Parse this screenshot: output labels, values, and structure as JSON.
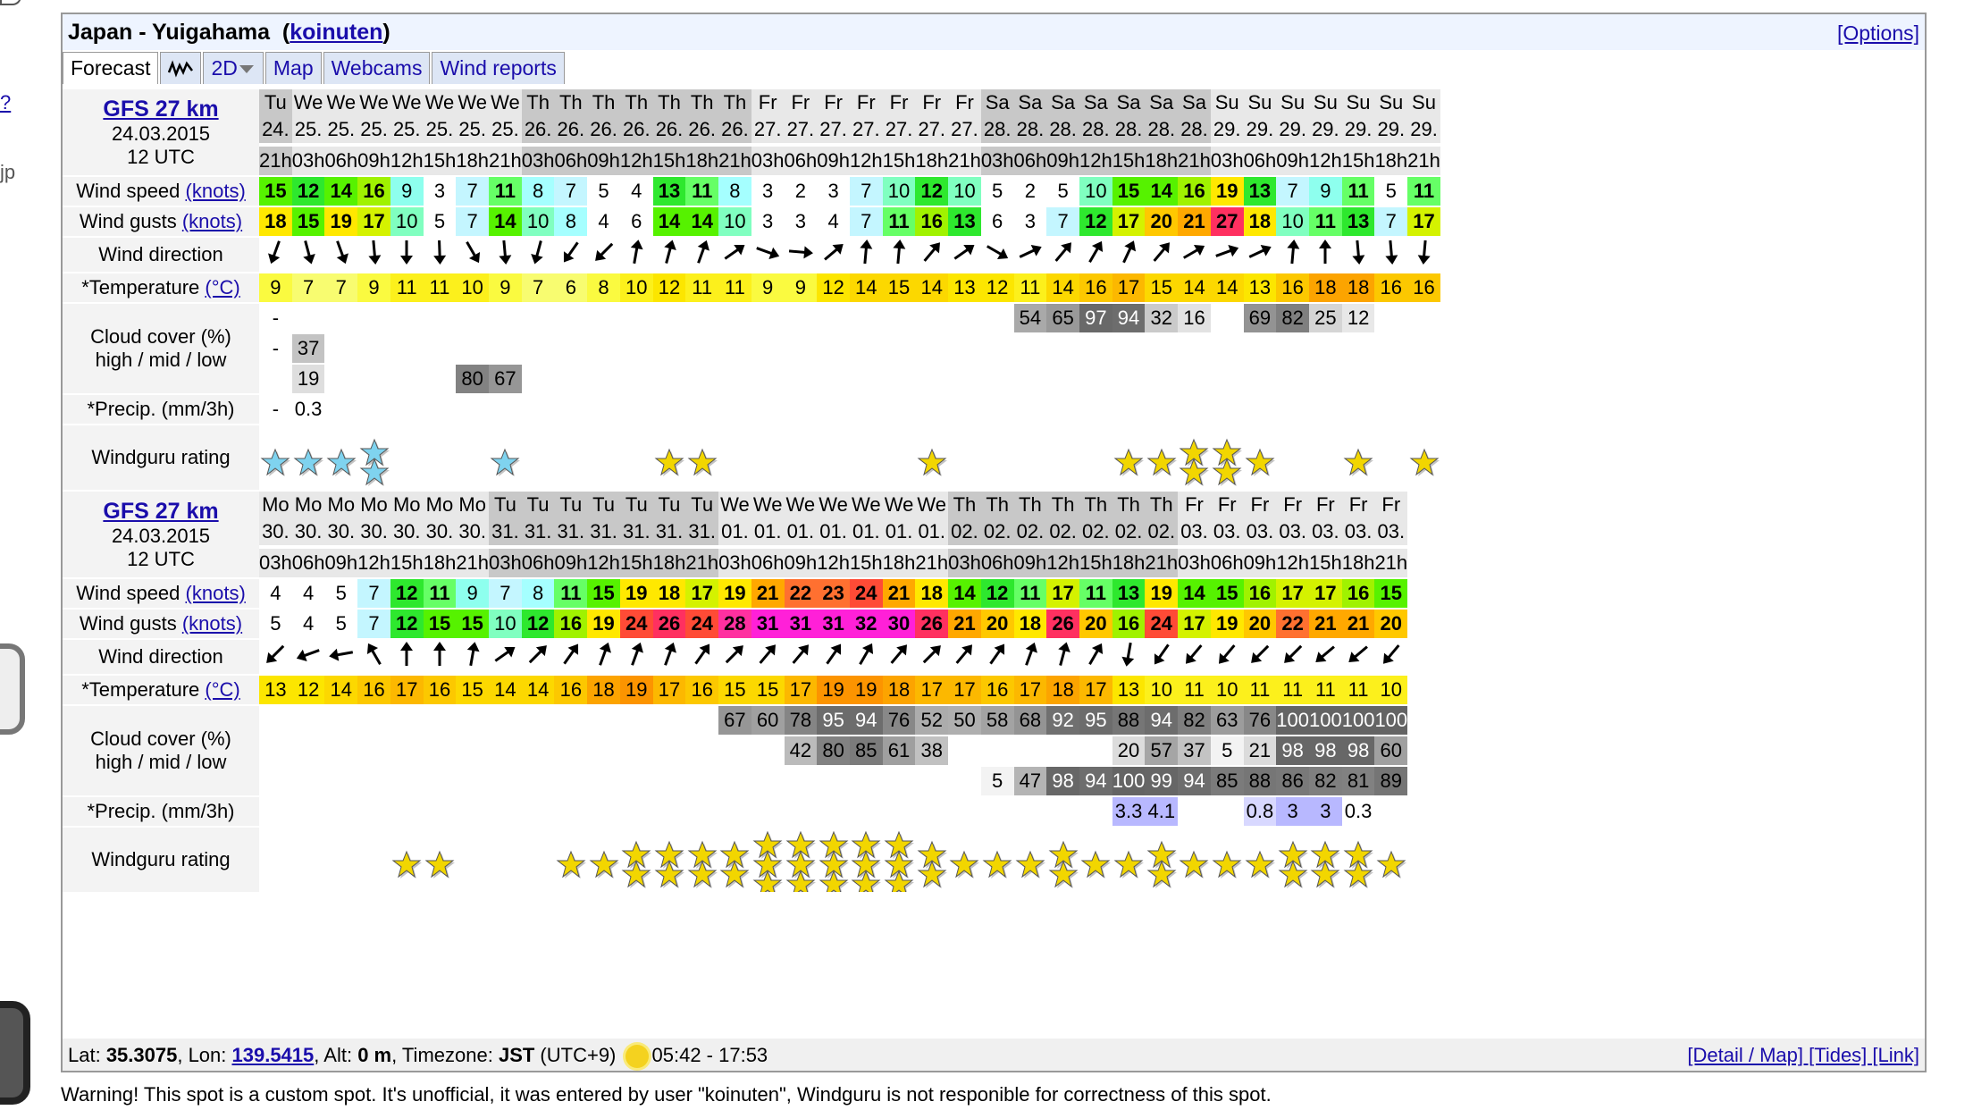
{
  "spot": {
    "title": "Japan - Yuigahama",
    "user": "koinuten",
    "options": "[Options]"
  },
  "tabs": {
    "forecast": "Forecast",
    "view": "2D",
    "map": "Map",
    "webcams": "Webcams",
    "reports": "Wind reports"
  },
  "labels": {
    "wind_speed": "Wind speed",
    "wind_gusts": "Wind gusts",
    "units_knots": "(knots)",
    "wind_direction": "Wind direction",
    "temperature": "*Temperature",
    "units_c": "(°C)",
    "cloud1": "Cloud cover (%)",
    "cloud2": "high / mid / low",
    "precip": "*Precip. (mm/3h)",
    "rating": "Windguru rating"
  },
  "colors": {
    "star": "#f2d600",
    "star_blue": "#7fd3ef"
  },
  "blocks": [
    {
      "model": "GFS 27 km",
      "date": "24.03.2015",
      "run": "12 UTC",
      "days": [
        "Tu",
        "We",
        "We",
        "We",
        "We",
        "We",
        "We",
        "We",
        "Th",
        "Th",
        "Th",
        "Th",
        "Th",
        "Th",
        "Th",
        "Fr",
        "Fr",
        "Fr",
        "Fr",
        "Fr",
        "Fr",
        "Fr",
        "Sa",
        "Sa",
        "Sa",
        "Sa",
        "Sa",
        "Sa",
        "Sa",
        "Su",
        "Su",
        "Su",
        "Su",
        "Su",
        "Su",
        "Su"
      ],
      "dates": [
        "24.",
        "25.",
        "25.",
        "25.",
        "25.",
        "25.",
        "25.",
        "25.",
        "26.",
        "26.",
        "26.",
        "26.",
        "26.",
        "26.",
        "26.",
        "27.",
        "27.",
        "27.",
        "27.",
        "27.",
        "27.",
        "27.",
        "28.",
        "28.",
        "28.",
        "28.",
        "28.",
        "28.",
        "28.",
        "29.",
        "29.",
        "29.",
        "29.",
        "29.",
        "29.",
        "29."
      ],
      "hours": [
        "21h",
        "03h",
        "06h",
        "09h",
        "12h",
        "15h",
        "18h",
        "21h",
        "03h",
        "06h",
        "09h",
        "12h",
        "15h",
        "18h",
        "21h",
        "03h",
        "06h",
        "09h",
        "12h",
        "15h",
        "18h",
        "21h",
        "03h",
        "06h",
        "09h",
        "12h",
        "15h",
        "18h",
        "21h",
        "03h",
        "06h",
        "09h",
        "12h",
        "15h",
        "18h",
        "21h"
      ],
      "shade": [
        1,
        0,
        0,
        0,
        0,
        0,
        0,
        0,
        1,
        1,
        1,
        1,
        1,
        1,
        1,
        0,
        0,
        0,
        0,
        0,
        0,
        0,
        1,
        1,
        1,
        1,
        1,
        1,
        1,
        0,
        0,
        0,
        0,
        0,
        0,
        0
      ],
      "speed": [
        15,
        12,
        14,
        16,
        9,
        3,
        7,
        11,
        8,
        7,
        5,
        4,
        13,
        11,
        8,
        3,
        2,
        3,
        7,
        10,
        12,
        10,
        5,
        2,
        5,
        10,
        15,
        14,
        16,
        19,
        13,
        7,
        9,
        11,
        5,
        11
      ],
      "gusts": [
        18,
        15,
        19,
        17,
        10,
        5,
        7,
        14,
        10,
        8,
        4,
        6,
        14,
        14,
        10,
        3,
        3,
        4,
        7,
        11,
        16,
        13,
        6,
        3,
        7,
        12,
        17,
        20,
        21,
        27,
        18,
        10,
        11,
        13,
        7,
        17
      ],
      "dir": [
        200,
        165,
        160,
        175,
        180,
        178,
        150,
        175,
        195,
        215,
        225,
        10,
        15,
        20,
        55,
        110,
        95,
        50,
        5,
        5,
        40,
        55,
        120,
        65,
        40,
        30,
        25,
        40,
        60,
        70,
        65,
        5,
        0,
        175,
        175,
        185
      ],
      "temp": [
        9,
        7,
        7,
        9,
        11,
        11,
        10,
        9,
        7,
        6,
        8,
        10,
        12,
        11,
        11,
        9,
        9,
        12,
        14,
        15,
        14,
        13,
        12,
        11,
        14,
        16,
        17,
        15,
        14,
        14,
        13,
        16,
        18,
        18,
        16,
        16
      ],
      "cloud_high": [
        "-",
        "",
        "",
        "",
        "",
        "",
        "",
        "",
        "",
        "",
        "",
        "",
        "",
        "",
        "",
        "",
        "",
        "",
        "",
        "",
        "",
        "",
        "",
        "54",
        "65",
        "97",
        "94",
        "32",
        "16",
        "",
        "69",
        "82",
        "25",
        "12",
        "",
        ""
      ],
      "cloud_mid": [
        "-",
        "37",
        "",
        "",
        "",
        "",
        "",
        "",
        "",
        "",
        "",
        "",
        "",
        "",
        "",
        "",
        "",
        "",
        "",
        "",
        "",
        "",
        "",
        "",
        "",
        "",
        "",
        "",
        "",
        "",
        "",
        "",
        "",
        "",
        "",
        ""
      ],
      "cloud_low": [
        "",
        "19",
        "",
        "",
        "",
        "",
        "80",
        "67",
        "",
        "",
        "",
        "",
        "",
        "",
        "",
        "",
        "",
        "",
        "",
        "",
        "",
        "",
        "",
        "",
        "",
        "",
        "",
        "",
        "",
        "",
        "",
        "",
        "",
        "",
        "",
        ""
      ],
      "precip": [
        "-",
        "0.3",
        "",
        "",
        "",
        "",
        "",
        "",
        "",
        "",
        "",
        "",
        "",
        "",
        "",
        "",
        "",
        "",
        "",
        "",
        "",
        "",
        "",
        "",
        "",
        "",
        "",
        "",
        "",
        "",
        "",
        "",
        "",
        "",
        "",
        ""
      ],
      "rating": [
        1,
        1,
        1,
        2,
        0,
        0,
        0,
        1,
        0,
        0,
        0,
        0,
        1,
        1,
        0,
        0,
        0,
        0,
        0,
        0,
        1,
        0,
        0,
        0,
        0,
        0,
        1,
        1,
        2,
        2,
        1,
        0,
        0,
        1,
        0,
        1
      ],
      "rating_blue": [
        1,
        1,
        1,
        1,
        0,
        0,
        0,
        1,
        0,
        0,
        0,
        0,
        0,
        0,
        0,
        0,
        0,
        0,
        0,
        0,
        0,
        0,
        0,
        0,
        0,
        0,
        0,
        0,
        0,
        0,
        0,
        0,
        0,
        0,
        0,
        0
      ]
    },
    {
      "model": "GFS 27 km",
      "date": "24.03.2015",
      "run": "12 UTC",
      "days": [
        "Mo",
        "Mo",
        "Mo",
        "Mo",
        "Mo",
        "Mo",
        "Mo",
        "Tu",
        "Tu",
        "Tu",
        "Tu",
        "Tu",
        "Tu",
        "Tu",
        "We",
        "We",
        "We",
        "We",
        "We",
        "We",
        "We",
        "Th",
        "Th",
        "Th",
        "Th",
        "Th",
        "Th",
        "Th",
        "Fr",
        "Fr",
        "Fr",
        "Fr",
        "Fr",
        "Fr",
        "Fr"
      ],
      "dates": [
        "30.",
        "30.",
        "30.",
        "30.",
        "30.",
        "30.",
        "30.",
        "31.",
        "31.",
        "31.",
        "31.",
        "31.",
        "31.",
        "31.",
        "01.",
        "01.",
        "01.",
        "01.",
        "01.",
        "01.",
        "01.",
        "02.",
        "02.",
        "02.",
        "02.",
        "02.",
        "02.",
        "02.",
        "03.",
        "03.",
        "03.",
        "03.",
        "03.",
        "03.",
        "03."
      ],
      "hours": [
        "03h",
        "06h",
        "09h",
        "12h",
        "15h",
        "18h",
        "21h",
        "03h",
        "06h",
        "09h",
        "12h",
        "15h",
        "18h",
        "21h",
        "03h",
        "06h",
        "09h",
        "12h",
        "15h",
        "18h",
        "21h",
        "03h",
        "06h",
        "09h",
        "12h",
        "15h",
        "18h",
        "21h",
        "03h",
        "06h",
        "09h",
        "12h",
        "15h",
        "18h",
        "21h"
      ],
      "shade": [
        0,
        0,
        0,
        0,
        0,
        0,
        0,
        1,
        1,
        1,
        1,
        1,
        1,
        1,
        0,
        0,
        0,
        0,
        0,
        0,
        0,
        1,
        1,
        1,
        1,
        1,
        1,
        1,
        0,
        0,
        0,
        0,
        0,
        0,
        0
      ],
      "speed": [
        4,
        4,
        5,
        7,
        12,
        11,
        9,
        7,
        8,
        11,
        15,
        19,
        18,
        17,
        19,
        21,
        22,
        23,
        24,
        21,
        18,
        14,
        12,
        11,
        17,
        11,
        13,
        19,
        14,
        15,
        16,
        17,
        17,
        16,
        15
      ],
      "gusts": [
        5,
        4,
        5,
        7,
        12,
        15,
        15,
        10,
        12,
        16,
        19,
        24,
        26,
        24,
        28,
        31,
        31,
        31,
        32,
        30,
        26,
        21,
        20,
        18,
        26,
        20,
        16,
        24,
        17,
        19,
        20,
        22,
        21,
        21,
        20
      ],
      "dir": [
        225,
        250,
        260,
        330,
        0,
        0,
        10,
        55,
        45,
        35,
        20,
        20,
        20,
        35,
        45,
        40,
        40,
        35,
        30,
        40,
        45,
        40,
        35,
        20,
        15,
        30,
        190,
        215,
        220,
        220,
        225,
        225,
        230,
        230,
        220
      ],
      "temp": [
        13,
        12,
        14,
        16,
        17,
        16,
        15,
        14,
        14,
        16,
        18,
        19,
        17,
        16,
        15,
        15,
        17,
        19,
        19,
        18,
        17,
        17,
        16,
        17,
        18,
        17,
        13,
        10,
        11,
        10,
        11,
        11,
        11,
        11,
        10
      ],
      "cloud_high": [
        "",
        "",
        "",
        "",
        "",
        "",
        "",
        "",
        "",
        "",
        "",
        "",
        "",
        "",
        "67",
        "60",
        "78",
        "95",
        "94",
        "76",
        "52",
        "50",
        "58",
        "68",
        "92",
        "95",
        "88",
        "94",
        "82",
        "63",
        "76",
        "100",
        "100",
        "100",
        "100"
      ],
      "cloud_mid": [
        "",
        "",
        "",
        "",
        "",
        "",
        "",
        "",
        "",
        "",
        "",
        "",
        "",
        "",
        "",
        "",
        "42",
        "80",
        "85",
        "61",
        "38",
        "",
        "",
        "",
        "",
        "",
        "20",
        "57",
        "37",
        "5",
        "21",
        "98",
        "98",
        "98",
        "60"
      ],
      "cloud_low": [
        "",
        "",
        "",
        "",
        "",
        "",
        "",
        "",
        "",
        "",
        "",
        "",
        "",
        "",
        "",
        "",
        "",
        "",
        "",
        "",
        "",
        "",
        "5",
        "47",
        "98",
        "94",
        "100",
        "99",
        "94",
        "85",
        "88",
        "86",
        "82",
        "81",
        "89"
      ],
      "precip": [
        "",
        "",
        "",
        "",
        "",
        "",
        "",
        "",
        "",
        "",
        "",
        "",
        "",
        "",
        "",
        "",
        "",
        "",
        "",
        "",
        "",
        "",
        "",
        "",
        "",
        "",
        "3.3",
        "4.1",
        "",
        "",
        "0.8",
        "3",
        "3",
        "0.3",
        ""
      ],
      "rating": [
        0,
        0,
        0,
        0,
        1,
        1,
        0,
        0,
        0,
        1,
        1,
        2,
        2,
        2,
        2,
        3,
        3,
        3,
        3,
        3,
        2,
        1,
        1,
        1,
        2,
        1,
        1,
        2,
        1,
        1,
        1,
        2,
        2,
        2,
        1
      ],
      "rating_blue": [
        0,
        0,
        0,
        0,
        0,
        0,
        0,
        0,
        0,
        0,
        0,
        0,
        0,
        0,
        0,
        0,
        0,
        0,
        0,
        0,
        0,
        0,
        0,
        0,
        0,
        0,
        0,
        0,
        0,
        0,
        0,
        0,
        0,
        0,
        0
      ]
    }
  ],
  "footer": {
    "lat_label": "Lat: ",
    "lat": "35.3075",
    "lon_label": ", Lon: ",
    "lon": "139.5415",
    "alt_label": ", Alt: ",
    "alt": "0 m",
    "tz_label": ", Timezone: ",
    "tz": "JST",
    "utc": " (UTC+9)",
    "sun": "05:42 - 17:53",
    "links": "[Detail / Map] [Tides] [Link]"
  },
  "warning": "Warning! This spot is a custom spot. It's unofficial, it was entered by user \"koinuten\", Windguru is not responible for correctness of this spot."
}
